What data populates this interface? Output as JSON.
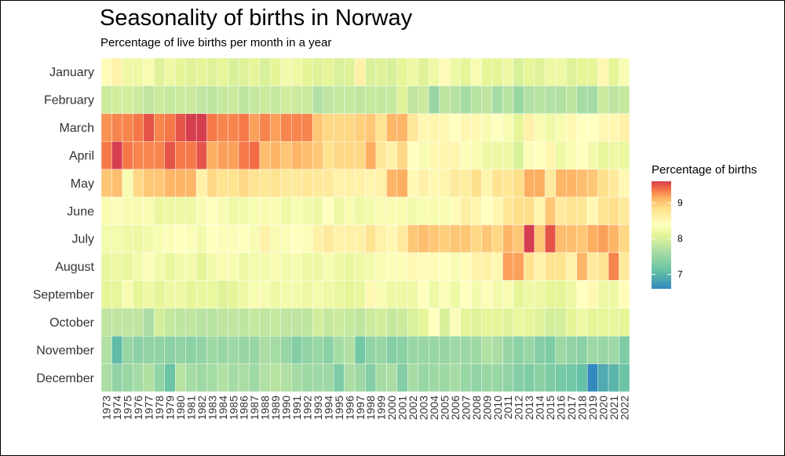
{
  "chart_data": {
    "type": "heatmap",
    "title": "Seasonality of births in Norway",
    "subtitle": "Percentage of live births per month in a year",
    "xlabel": "",
    "ylabel": "",
    "x": [
      1973,
      1974,
      1975,
      1976,
      1977,
      1978,
      1979,
      1980,
      1981,
      1982,
      1983,
      1984,
      1985,
      1986,
      1987,
      1988,
      1989,
      1990,
      1991,
      1992,
      1993,
      1994,
      1995,
      1996,
      1997,
      1998,
      1999,
      2000,
      2001,
      2002,
      2003,
      2004,
      2005,
      2006,
      2007,
      2008,
      2009,
      2010,
      2011,
      2012,
      2013,
      2014,
      2015,
      2016,
      2017,
      2018,
      2019,
      2020,
      2021,
      2022
    ],
    "y": [
      "January",
      "February",
      "March",
      "April",
      "May",
      "June",
      "July",
      "August",
      "September",
      "October",
      "November",
      "December"
    ],
    "values": [
      [
        8.45,
        8.6,
        8.2,
        8.2,
        8.3,
        8.05,
        8.2,
        8.1,
        8.05,
        8.1,
        8.05,
        8.1,
        8.0,
        8.05,
        8.1,
        8.0,
        8.1,
        8.25,
        8.2,
        8.1,
        8.05,
        8.1,
        8.0,
        8.05,
        8.6,
        8.0,
        8.05,
        8.0,
        8.1,
        8.2,
        8.05,
        8.2,
        8.45,
        8.2,
        8.1,
        8.3,
        8.1,
        8.1,
        8.2,
        8.0,
        8.1,
        8.05,
        8.2,
        8.2,
        8.05,
        8.1,
        8.1,
        8.5,
        8.1,
        8.3
      ],
      [
        7.9,
        7.95,
        7.95,
        7.9,
        7.8,
        7.9,
        7.85,
        7.9,
        7.9,
        7.8,
        7.8,
        7.85,
        7.9,
        7.8,
        7.85,
        7.9,
        7.85,
        7.95,
        7.9,
        7.9,
        7.7,
        7.8,
        7.85,
        7.85,
        7.8,
        7.85,
        7.85,
        7.85,
        8.05,
        7.8,
        7.9,
        7.5,
        7.8,
        7.75,
        7.6,
        7.75,
        7.8,
        7.6,
        7.75,
        7.5,
        7.7,
        7.75,
        7.7,
        7.7,
        7.8,
        7.6,
        7.6,
        7.9,
        7.8,
        7.85
      ],
      [
        9.25,
        9.3,
        9.3,
        9.35,
        9.5,
        9.3,
        9.35,
        9.5,
        9.6,
        9.6,
        9.35,
        9.3,
        9.3,
        9.35,
        9.2,
        9.3,
        9.2,
        9.3,
        9.3,
        9.3,
        9.0,
        8.9,
        8.9,
        8.9,
        8.95,
        9.0,
        8.8,
        9.1,
        9.1,
        8.75,
        8.5,
        8.55,
        8.5,
        8.4,
        8.5,
        8.5,
        8.3,
        8.4,
        8.3,
        8.1,
        8.6,
        8.3,
        8.2,
        8.3,
        8.5,
        8.4,
        8.4,
        8.5,
        8.5,
        8.6
      ],
      [
        9.35,
        9.6,
        9.35,
        9.3,
        9.3,
        9.3,
        9.5,
        9.35,
        9.35,
        9.5,
        9.15,
        9.2,
        9.2,
        9.35,
        9.4,
        9.05,
        9.1,
        9.0,
        9.1,
        9.05,
        9.0,
        8.8,
        8.9,
        8.9,
        8.9,
        9.15,
        8.75,
        8.6,
        8.9,
        8.4,
        8.3,
        8.5,
        8.55,
        8.55,
        8.35,
        8.3,
        8.2,
        8.2,
        8.2,
        8.0,
        8.35,
        8.4,
        8.55,
        8.2,
        8.3,
        8.4,
        8.25,
        8.1,
        8.2,
        8.15
      ],
      [
        9.0,
        9.05,
        8.3,
        8.9,
        9.0,
        9.0,
        9.1,
        9.1,
        9.1,
        8.6,
        8.9,
        8.8,
        8.8,
        8.9,
        8.8,
        8.75,
        8.8,
        8.7,
        8.7,
        8.75,
        8.7,
        8.7,
        8.6,
        8.6,
        8.6,
        8.55,
        8.6,
        9.1,
        9.15,
        8.5,
        8.6,
        8.5,
        8.55,
        8.7,
        8.65,
        8.85,
        8.55,
        8.8,
        8.75,
        8.85,
        9.15,
        9.15,
        8.7,
        9.1,
        9.1,
        9.05,
        9.0,
        8.85,
        8.7,
        8.5
      ],
      [
        8.3,
        8.35,
        8.3,
        8.3,
        8.3,
        8.15,
        8.2,
        8.2,
        8.2,
        8.3,
        8.4,
        8.3,
        8.2,
        8.25,
        8.3,
        8.3,
        8.3,
        8.2,
        8.3,
        8.25,
        8.2,
        8.4,
        8.2,
        8.3,
        8.2,
        8.25,
        8.3,
        8.3,
        8.3,
        8.25,
        8.3,
        8.3,
        8.3,
        8.45,
        8.65,
        8.55,
        8.4,
        8.5,
        8.75,
        8.85,
        8.85,
        8.55,
        9.0,
        8.7,
        8.8,
        8.75,
        8.5,
        8.8,
        8.85,
        8.7
      ],
      [
        8.25,
        8.25,
        8.2,
        8.2,
        8.25,
        8.3,
        8.35,
        8.4,
        8.35,
        8.25,
        8.4,
        8.35,
        8.35,
        8.4,
        8.3,
        8.6,
        8.3,
        8.35,
        8.4,
        8.35,
        8.6,
        8.7,
        8.6,
        8.6,
        8.6,
        8.8,
        8.6,
        8.5,
        8.7,
        9.0,
        9.05,
        9.0,
        8.95,
        9.0,
        9.0,
        8.9,
        9.0,
        8.9,
        9.1,
        9.0,
        9.6,
        9.0,
        9.5,
        9.05,
        9.05,
        9.0,
        9.15,
        9.2,
        9.1,
        8.9
      ],
      [
        8.15,
        8.2,
        8.15,
        8.25,
        8.35,
        8.25,
        8.15,
        8.25,
        8.25,
        8.1,
        8.25,
        8.3,
        8.3,
        8.2,
        8.25,
        8.25,
        8.3,
        8.25,
        8.3,
        8.2,
        8.2,
        8.3,
        8.2,
        8.15,
        8.2,
        8.25,
        8.3,
        8.35,
        8.35,
        8.5,
        8.45,
        8.45,
        8.4,
        8.3,
        8.45,
        8.6,
        8.6,
        8.5,
        9.2,
        9.2,
        8.8,
        8.6,
        8.8,
        8.8,
        8.6,
        9.1,
        8.7,
        8.8,
        9.3,
        8.7
      ],
      [
        8.1,
        8.1,
        8.3,
        8.1,
        8.2,
        8.1,
        8.2,
        8.2,
        8.1,
        8.15,
        8.15,
        8.05,
        8.1,
        8.2,
        8.3,
        8.3,
        8.2,
        8.25,
        8.25,
        8.2,
        8.25,
        8.2,
        8.15,
        8.1,
        8.15,
        8.5,
        8.3,
        8.2,
        8.2,
        8.2,
        8.4,
        8.2,
        8.35,
        8.2,
        8.4,
        8.25,
        8.35,
        8.25,
        8.3,
        8.1,
        8.2,
        8.2,
        8.1,
        8.1,
        8.2,
        8.4,
        8.5,
        8.2,
        8.2,
        8.45
      ],
      [
        7.8,
        7.8,
        7.8,
        7.8,
        7.65,
        7.95,
        7.85,
        7.8,
        7.8,
        7.75,
        7.75,
        7.8,
        7.8,
        7.8,
        7.85,
        7.8,
        7.85,
        7.8,
        7.8,
        7.8,
        7.95,
        7.85,
        7.9,
        7.85,
        7.8,
        7.9,
        7.95,
        7.85,
        7.9,
        8.0,
        8.1,
        8.4,
        8.0,
        8.35,
        8.1,
        8.05,
        8.1,
        8.1,
        8.05,
        8.15,
        8.1,
        8.05,
        7.95,
        7.95,
        8.1,
        8.2,
        8.1,
        8.1,
        8.15,
        8.1
      ],
      [
        7.7,
        7.05,
        7.5,
        7.4,
        7.45,
        7.45,
        7.4,
        7.45,
        7.4,
        7.45,
        7.55,
        7.5,
        7.55,
        7.5,
        7.5,
        7.65,
        7.6,
        7.5,
        7.35,
        7.45,
        7.5,
        7.4,
        7.6,
        7.7,
        7.2,
        7.45,
        7.5,
        7.35,
        7.4,
        7.5,
        7.5,
        7.5,
        7.5,
        7.55,
        7.55,
        7.55,
        7.7,
        7.65,
        7.5,
        7.4,
        7.5,
        7.35,
        7.3,
        7.55,
        7.45,
        7.4,
        7.55,
        7.5,
        7.55,
        7.3
      ],
      [
        7.65,
        7.45,
        7.5,
        7.6,
        7.7,
        7.45,
        7.15,
        7.75,
        7.6,
        7.55,
        7.6,
        7.7,
        7.6,
        7.65,
        7.55,
        7.7,
        7.75,
        7.7,
        7.6,
        7.55,
        7.55,
        7.55,
        7.3,
        7.65,
        7.55,
        7.35,
        7.6,
        7.65,
        7.35,
        7.6,
        7.5,
        7.55,
        7.55,
        7.6,
        7.5,
        7.45,
        7.5,
        7.5,
        7.45,
        7.35,
        7.3,
        7.4,
        7.3,
        7.25,
        7.2,
        7.1,
        6.6,
        6.9,
        7.0,
        7.15
      ]
    ],
    "colorscale": "Spectral",
    "zlim": [
      6.6,
      9.6
    ],
    "legend": {
      "title": "Percentage of births",
      "position": "right",
      "ticks": [
        7,
        8,
        9
      ]
    },
    "colors": {
      "low": "#3288bd",
      "mid": "#ffffbf",
      "high": "#d53e4f"
    },
    "grid": false
  }
}
